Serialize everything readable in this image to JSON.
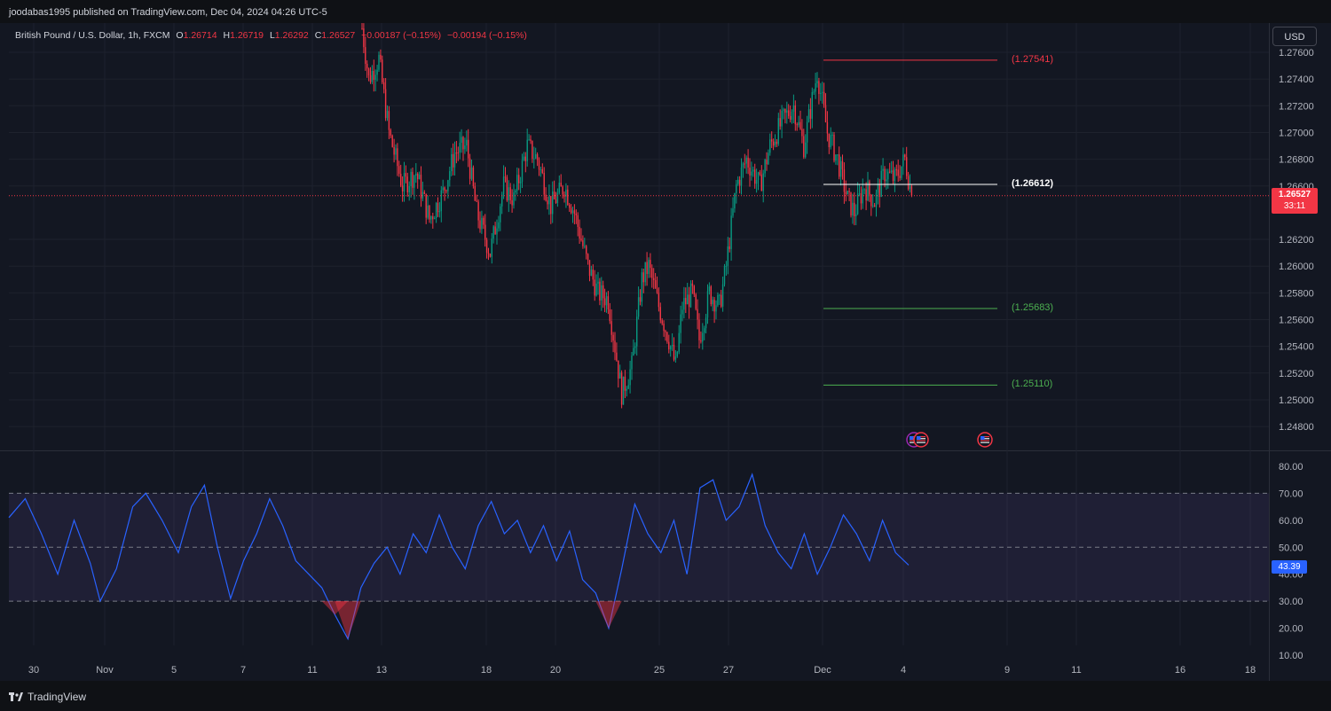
{
  "header": {
    "publisher": "joodabas1995 published on TradingView.com, Dec 04, 2024 04:26 UTC-5"
  },
  "legend": {
    "symbol": "British Pound / U.S. Dollar, 1h, FXCM",
    "o_key": "O",
    "o": "1.26714",
    "h_key": "H",
    "h": "1.26719",
    "l_key": "L",
    "l": "1.26292",
    "c_key": "C",
    "c": "1.26527",
    "change": "−0.00187 (−0.15%)",
    "change2": "−0.00194 (−0.15%)"
  },
  "currency_button": "USD",
  "last_price": {
    "value": "1.26527",
    "countdown": "33:11",
    "color": "#f23645"
  },
  "rsi_value": {
    "value": "43.39",
    "color": "#2962ff"
  },
  "footer": {
    "brand": "TradingView"
  },
  "colors": {
    "up": "#089981",
    "down": "#f23645",
    "rsi": "#2962ff",
    "resistance": "#f23645",
    "pivot": "#ffffff",
    "support": "#4caf50",
    "background": "#131722"
  },
  "icons": [
    "us-flag-event-icon",
    "us-flag-event-icon",
    "us-flag-event-icon"
  ],
  "chart_data": {
    "type": "candlestick",
    "timeframe": "1h",
    "price_axis": {
      "ticks": [
        "1.27600",
        "1.27400",
        "1.27200",
        "1.27000",
        "1.26800",
        "1.26600",
        "1.26200",
        "1.26000",
        "1.25800",
        "1.25600",
        "1.25400",
        "1.25200",
        "1.25000",
        "1.24800"
      ],
      "range": [
        1.247,
        1.2775
      ]
    },
    "time_axis": {
      "ticks": [
        "30",
        "Nov",
        "5",
        "7",
        "11",
        "13",
        "18",
        "20",
        "25",
        "27",
        "Dec",
        "4",
        "9",
        "11",
        "16",
        "18"
      ]
    },
    "levels": [
      {
        "label": "(1.27541)",
        "value": 1.27541,
        "kind": "resistance"
      },
      {
        "label": "(1.26612)",
        "value": 1.26612,
        "kind": "pivot"
      },
      {
        "label": "(1.25683)",
        "value": 1.25683,
        "kind": "support"
      },
      {
        "label": "(1.25110)",
        "value": 1.2511,
        "kind": "support"
      }
    ],
    "price_path": [
      [
        0,
        1.2778
      ],
      [
        4,
        1.274
      ],
      [
        10,
        1.2755
      ],
      [
        16,
        1.27
      ],
      [
        24,
        1.266
      ],
      [
        32,
        1.267
      ],
      [
        40,
        1.2635
      ],
      [
        48,
        1.2655
      ],
      [
        55,
        1.2685
      ],
      [
        62,
        1.269
      ],
      [
        68,
        1.264
      ],
      [
        76,
        1.261
      ],
      [
        84,
        1.266
      ],
      [
        90,
        1.265
      ],
      [
        98,
        1.269
      ],
      [
        104,
        1.268
      ],
      [
        112,
        1.2645
      ],
      [
        120,
        1.266
      ],
      [
        126,
        1.264
      ],
      [
        134,
        1.26
      ],
      [
        140,
        1.258
      ],
      [
        146,
        1.2575
      ],
      [
        150,
        1.254
      ],
      [
        154,
        1.2505
      ],
      [
        160,
        1.2525
      ],
      [
        166,
        1.259
      ],
      [
        170,
        1.26
      ],
      [
        176,
        1.257
      ],
      [
        182,
        1.2545
      ],
      [
        186,
        1.2525
      ],
      [
        190,
        1.257
      ],
      [
        196,
        1.258
      ],
      [
        200,
        1.2545
      ],
      [
        206,
        1.258
      ],
      [
        212,
        1.257
      ],
      [
        216,
        1.26
      ],
      [
        222,
        1.266
      ],
      [
        228,
        1.268
      ],
      [
        236,
        1.266
      ],
      [
        242,
        1.269
      ],
      [
        250,
        1.271
      ],
      [
        256,
        1.272
      ],
      [
        262,
        1.269
      ],
      [
        270,
        1.2745
      ],
      [
        276,
        1.27
      ],
      [
        282,
        1.268
      ],
      [
        288,
        1.265
      ],
      [
        292,
        1.264
      ],
      [
        298,
        1.266
      ],
      [
        304,
        1.2648
      ],
      [
        310,
        1.267
      ],
      [
        316,
        1.2665
      ],
      [
        322,
        1.268
      ],
      [
        326,
        1.26527
      ]
    ],
    "rsi": {
      "axis_ticks": [
        "80.00",
        "70.00",
        "60.00",
        "50.00",
        "40.00",
        "30.00",
        "20.00",
        "10.00"
      ],
      "range": [
        10,
        80
      ],
      "overbought": 70,
      "middle": 50,
      "oversold": 30,
      "last": 43.39,
      "path": [
        [
          0,
          61
        ],
        [
          5,
          68
        ],
        [
          10,
          55
        ],
        [
          15,
          40
        ],
        [
          20,
          60
        ],
        [
          25,
          44
        ],
        [
          28,
          30
        ],
        [
          33,
          42
        ],
        [
          38,
          65
        ],
        [
          42,
          70
        ],
        [
          47,
          60
        ],
        [
          52,
          48
        ],
        [
          56,
          65
        ],
        [
          60,
          73
        ],
        [
          64,
          50
        ],
        [
          68,
          31
        ],
        [
          72,
          45
        ],
        [
          76,
          55
        ],
        [
          80,
          68
        ],
        [
          84,
          58
        ],
        [
          88,
          45
        ],
        [
          92,
          40
        ],
        [
          96,
          35
        ],
        [
          100,
          25
        ],
        [
          104,
          16
        ],
        [
          108,
          35
        ],
        [
          112,
          44
        ],
        [
          116,
          50
        ],
        [
          120,
          40
        ],
        [
          124,
          55
        ],
        [
          128,
          48
        ],
        [
          132,
          62
        ],
        [
          136,
          50
        ],
        [
          140,
          42
        ],
        [
          144,
          58
        ],
        [
          148,
          67
        ],
        [
          152,
          55
        ],
        [
          156,
          60
        ],
        [
          160,
          48
        ],
        [
          164,
          58
        ],
        [
          168,
          45
        ],
        [
          172,
          56
        ],
        [
          176,
          38
        ],
        [
          180,
          33
        ],
        [
          184,
          20
        ],
        [
          188,
          42
        ],
        [
          192,
          66
        ],
        [
          196,
          55
        ],
        [
          200,
          48
        ],
        [
          204,
          60
        ],
        [
          208,
          40
        ],
        [
          212,
          72
        ],
        [
          216,
          75
        ],
        [
          220,
          60
        ],
        [
          224,
          65
        ],
        [
          228,
          77
        ],
        [
          232,
          58
        ],
        [
          236,
          48
        ],
        [
          240,
          42
        ],
        [
          244,
          55
        ],
        [
          248,
          40
        ],
        [
          252,
          50
        ],
        [
          256,
          62
        ],
        [
          260,
          55
        ],
        [
          264,
          45
        ],
        [
          268,
          60
        ],
        [
          272,
          48
        ],
        [
          276,
          43.39
        ]
      ]
    }
  }
}
